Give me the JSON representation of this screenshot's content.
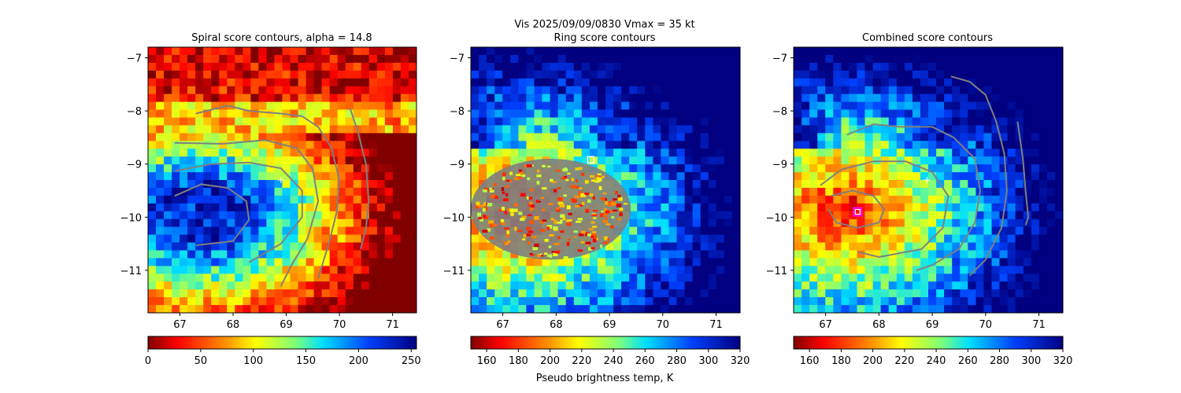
{
  "suptitle": {
    "line1": "Vis  2025/09/09/0830    Vmax = 35 kt",
    "line2": "Ring score contours"
  },
  "colors": {
    "contour": "#808080",
    "center_marker": "#ffffff",
    "combined_center_ring": "#ff00ff",
    "frame": "#000000"
  },
  "chart_data": [
    {
      "type": "heatmap",
      "title": "Spiral score contours, alpha = 14.8",
      "xlim": [
        66.4,
        71.45
      ],
      "ylim": [
        -11.8,
        -6.8
      ],
      "xticks": [
        "67",
        "68",
        "69",
        "70",
        "71"
      ],
      "yticks": [
        "−7",
        "−8",
        "−9",
        "−10",
        "−11"
      ],
      "colormap": "jet_r",
      "field": "brightness",
      "contours": [
        [
          [
            66.9,
            -9.6
          ],
          [
            67.4,
            -9.38
          ],
          [
            67.9,
            -9.45
          ],
          [
            68.25,
            -9.7
          ],
          [
            68.3,
            -10.05
          ],
          [
            68.0,
            -10.45
          ],
          [
            67.3,
            -10.53
          ]
        ],
        [
          [
            66.9,
            -9.13
          ],
          [
            67.6,
            -9.0
          ],
          [
            68.3,
            -8.97
          ],
          [
            68.9,
            -9.08
          ],
          [
            69.3,
            -9.5
          ],
          [
            69.3,
            -10.0
          ],
          [
            68.9,
            -10.5
          ],
          [
            68.3,
            -10.85
          ]
        ],
        [
          [
            66.9,
            -8.6
          ],
          [
            67.8,
            -8.62
          ],
          [
            68.6,
            -8.55
          ],
          [
            69.2,
            -8.7
          ],
          [
            69.5,
            -9.1
          ],
          [
            69.6,
            -9.7
          ],
          [
            69.4,
            -10.4
          ],
          [
            69.1,
            -10.9
          ],
          [
            68.9,
            -11.3
          ]
        ],
        [
          [
            67.3,
            -8.05
          ],
          [
            67.9,
            -7.9
          ],
          [
            68.3,
            -8.0
          ],
          [
            68.9,
            -8.05
          ],
          [
            69.3,
            -8.1
          ],
          [
            69.6,
            -8.3
          ],
          [
            69.85,
            -8.7
          ],
          [
            70.0,
            -9.3
          ],
          [
            69.95,
            -9.9
          ],
          [
            69.8,
            -10.5
          ],
          [
            69.6,
            -11.15
          ]
        ],
        [
          [
            70.2,
            -7.95
          ],
          [
            70.35,
            -8.4
          ],
          [
            70.5,
            -9.0
          ],
          [
            70.55,
            -9.7
          ],
          [
            70.5,
            -10.2
          ],
          [
            70.4,
            -10.6
          ]
        ]
      ],
      "center_marker": {
        "x": 68.9,
        "y": -9.3,
        "symbol": "+"
      },
      "colorbar": {
        "min": 0,
        "max": 255,
        "ticks": [
          "0",
          "50",
          "100",
          "150",
          "200",
          "250"
        ],
        "label": ""
      }
    },
    {
      "type": "heatmap",
      "title": "Ring score contours",
      "xlim": [
        66.4,
        71.45
      ],
      "ylim": [
        -11.8,
        -6.8
      ],
      "xticks": [
        "67",
        "68",
        "69",
        "70",
        "71"
      ],
      "yticks": [
        "−7",
        "−8",
        "−9",
        "−10",
        "−11"
      ],
      "colormap": "jet_r",
      "field": "brightness temperature",
      "ring_region": {
        "cx": 67.9,
        "cy": -9.85,
        "rx": 1.5,
        "ry": 0.95
      },
      "center_marker": {
        "x": 68.65,
        "y": -8.92,
        "symbol": "square"
      },
      "colorbar": {
        "min": 150,
        "max": 320,
        "ticks": [
          "160",
          "180",
          "200",
          "220",
          "240",
          "260",
          "280",
          "300",
          "320"
        ],
        "label": "Pseudo brightness temp, K"
      }
    },
    {
      "type": "heatmap",
      "title": "Combined score contours",
      "xlim": [
        66.4,
        71.45
      ],
      "ylim": [
        -11.8,
        -6.8
      ],
      "xticks": [
        "67",
        "68",
        "69",
        "70",
        "71"
      ],
      "yticks": [
        "−7",
        "−8",
        "−9",
        "−10",
        "−11"
      ],
      "colormap": "jet_r",
      "field": "brightness temperature",
      "contours": [
        [
          [
            67.1,
            -9.6
          ],
          [
            67.5,
            -9.5
          ],
          [
            67.9,
            -9.6
          ],
          [
            68.1,
            -9.85
          ],
          [
            68.0,
            -10.1
          ],
          [
            67.6,
            -10.2
          ],
          [
            67.2,
            -10.1
          ],
          [
            67.05,
            -9.85
          ]
        ],
        [
          [
            66.9,
            -9.4
          ],
          [
            67.3,
            -9.1
          ],
          [
            67.9,
            -8.95
          ],
          [
            68.5,
            -8.95
          ],
          [
            69.0,
            -9.15
          ],
          [
            69.3,
            -9.6
          ],
          [
            69.2,
            -10.2
          ],
          [
            68.8,
            -10.6
          ],
          [
            68.0,
            -10.75
          ],
          [
            67.6,
            -10.65
          ]
        ],
        [
          [
            67.4,
            -8.45
          ],
          [
            67.9,
            -8.25
          ],
          [
            68.4,
            -8.3
          ],
          [
            69.0,
            -8.3
          ],
          [
            69.4,
            -8.5
          ],
          [
            69.8,
            -8.9
          ],
          [
            69.9,
            -9.5
          ],
          [
            69.8,
            -10.1
          ],
          [
            69.5,
            -10.6
          ],
          [
            69.0,
            -10.9
          ],
          [
            68.7,
            -11.0
          ]
        ],
        [
          [
            69.35,
            -7.35
          ],
          [
            69.7,
            -7.45
          ],
          [
            70.0,
            -7.7
          ],
          [
            70.2,
            -8.2
          ],
          [
            70.35,
            -8.8
          ],
          [
            70.4,
            -9.5
          ],
          [
            70.3,
            -10.2
          ],
          [
            70.0,
            -10.8
          ],
          [
            69.7,
            -11.1
          ]
        ],
        [
          [
            70.6,
            -8.2
          ],
          [
            70.7,
            -8.9
          ],
          [
            70.75,
            -9.5
          ],
          [
            70.8,
            -10.0
          ],
          [
            70.75,
            -10.15
          ]
        ]
      ],
      "center_marker": {
        "x": 68.9,
        "y": -9.3,
        "symbol": "+"
      },
      "combined_center": {
        "x": 67.6,
        "y": -9.9
      },
      "colorbar": {
        "min": 150,
        "max": 320,
        "ticks": [
          "160",
          "180",
          "200",
          "220",
          "240",
          "260",
          "280",
          "300",
          "320"
        ],
        "label": ""
      }
    }
  ]
}
